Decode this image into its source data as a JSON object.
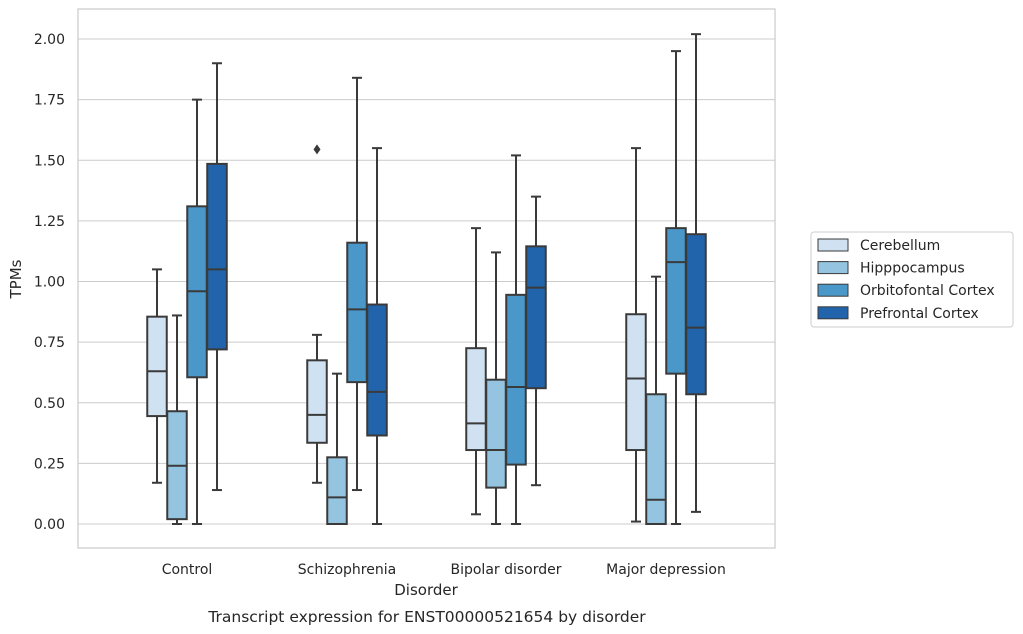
{
  "chart_data": {
    "type": "box",
    "caption": "Transcript expression for ENST00000521654 by disorder",
    "xlabel": "Disorder",
    "ylabel": "TPMs",
    "ylim": [
      -0.1,
      2.12
    ],
    "yticks": [
      "0.00",
      "0.25",
      "0.50",
      "0.75",
      "1.00",
      "1.25",
      "1.50",
      "1.75",
      "2.00"
    ],
    "grid": true,
    "legend_placement": "right-center",
    "categories": [
      "Control",
      "Schizophrenia",
      "Bipolar disorder",
      "Major depression"
    ],
    "series": [
      {
        "name": "Cerebellum",
        "color": "#d0e1f2",
        "boxes": [
          {
            "whisker_low": 0.17,
            "q1": 0.445,
            "median": 0.63,
            "q3": 0.855,
            "whisker_high": 1.05,
            "outliers": []
          },
          {
            "whisker_low": 0.17,
            "q1": 0.335,
            "median": 0.45,
            "q3": 0.675,
            "whisker_high": 0.78,
            "outliers": [
              1.545
            ]
          },
          {
            "whisker_low": 0.04,
            "q1": 0.305,
            "median": 0.415,
            "q3": 0.725,
            "whisker_high": 1.22,
            "outliers": []
          },
          {
            "whisker_low": 0.01,
            "q1": 0.305,
            "median": 0.6,
            "q3": 0.865,
            "whisker_high": 1.55,
            "outliers": []
          }
        ]
      },
      {
        "name": "Hipppocampus",
        "color": "#94c4df",
        "boxes": [
          {
            "whisker_low": 0.0,
            "q1": 0.02,
            "median": 0.24,
            "q3": 0.465,
            "whisker_high": 0.86,
            "outliers": []
          },
          {
            "whisker_low": 0.0,
            "q1": 0.0,
            "median": 0.11,
            "q3": 0.275,
            "whisker_high": 0.62,
            "outliers": []
          },
          {
            "whisker_low": 0.0,
            "q1": 0.15,
            "median": 0.305,
            "q3": 0.595,
            "whisker_high": 1.12,
            "outliers": []
          },
          {
            "whisker_low": 0.0,
            "q1": 0.0,
            "median": 0.1,
            "q3": 0.535,
            "whisker_high": 1.02,
            "outliers": []
          }
        ]
      },
      {
        "name": "Orbitofontal Cortex",
        "color": "#4a98c9",
        "boxes": [
          {
            "whisker_low": 0.0,
            "q1": 0.605,
            "median": 0.96,
            "q3": 1.31,
            "whisker_high": 1.75,
            "outliers": []
          },
          {
            "whisker_low": 0.14,
            "q1": 0.585,
            "median": 0.885,
            "q3": 1.16,
            "whisker_high": 1.84,
            "outliers": []
          },
          {
            "whisker_low": 0.0,
            "q1": 0.245,
            "median": 0.565,
            "q3": 0.945,
            "whisker_high": 1.52,
            "outliers": []
          },
          {
            "whisker_low": 0.0,
            "q1": 0.62,
            "median": 1.08,
            "q3": 1.22,
            "whisker_high": 1.95,
            "outliers": []
          }
        ]
      },
      {
        "name": "Prefrontal Cortex",
        "color": "#2164ab",
        "boxes": [
          {
            "whisker_low": 0.14,
            "q1": 0.72,
            "median": 1.05,
            "q3": 1.485,
            "whisker_high": 1.9,
            "outliers": []
          },
          {
            "whisker_low": 0.0,
            "q1": 0.365,
            "median": 0.545,
            "q3": 0.905,
            "whisker_high": 1.55,
            "outliers": []
          },
          {
            "whisker_low": 0.16,
            "q1": 0.56,
            "median": 0.975,
            "q3": 1.145,
            "whisker_high": 1.35,
            "outliers": []
          },
          {
            "whisker_low": 0.05,
            "q1": 0.535,
            "median": 0.81,
            "q3": 1.195,
            "whisker_high": 2.02,
            "outliers": []
          }
        ]
      }
    ]
  }
}
